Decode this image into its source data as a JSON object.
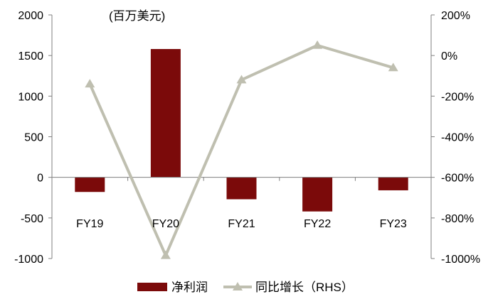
{
  "chart_data": {
    "type": "bar",
    "categories": [
      "FY19",
      "FY20",
      "FY21",
      "FY22",
      "FY23"
    ],
    "unit_label": "(百万美元)",
    "series": [
      {
        "name": "净利润",
        "type": "bar",
        "axis": "left",
        "color": "#7b0a0a",
        "values": [
          -180,
          1580,
          -270,
          -420,
          -160
        ]
      },
      {
        "name": "同比增长（RHS）",
        "type": "line",
        "axis": "right",
        "color": "#bfbfb0",
        "marker": "triangle",
        "values": [
          -140,
          -985,
          -120,
          50,
          -60
        ]
      }
    ],
    "y_left": {
      "min": -1000,
      "max": 2000,
      "ticks": [
        2000,
        1500,
        1000,
        500,
        0,
        -500,
        -1000
      ],
      "tick_labels": [
        "2000",
        "1500",
        "1000",
        "500",
        "0",
        "-500",
        "-1000"
      ]
    },
    "y_right": {
      "min": -1000,
      "max": 200,
      "ticks": [
        200,
        0,
        -200,
        -400,
        -600,
        -800,
        -1000
      ],
      "tick_labels": [
        "200%",
        "0%",
        "-200%",
        "-400%",
        "-600%",
        "-800%",
        "-1000%"
      ]
    },
    "grid": false,
    "legend": "bottom"
  }
}
